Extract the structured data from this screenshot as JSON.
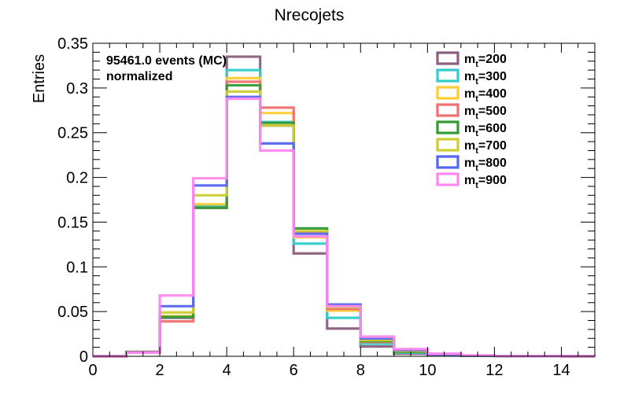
{
  "chart_data": {
    "type": "histogram",
    "title": "Nrecojets",
    "xlabel": "",
    "ylabel": "Entries",
    "xlim": [
      0,
      15
    ],
    "ylim": [
      0,
      0.35
    ],
    "x_ticks": [
      "0",
      "2",
      "4",
      "6",
      "8",
      "10",
      "12",
      "14"
    ],
    "x_tick_values": [
      0,
      2,
      4,
      6,
      8,
      10,
      12,
      14
    ],
    "y_ticks": [
      "0",
      "0.05",
      "0.1",
      "0.15",
      "0.2",
      "0.25",
      "0.3",
      "0.35"
    ],
    "y_tick_values": [
      0,
      0.05,
      0.1,
      0.15,
      0.2,
      0.25,
      0.3,
      0.35
    ],
    "bin_edges": [
      0,
      1,
      2,
      3,
      4,
      5,
      6,
      7,
      8,
      9,
      10,
      11,
      12,
      13,
      14,
      15
    ],
    "info_line1": "95461.0 events (MC)",
    "info_line2": "normalized",
    "legend_position": "top-right",
    "grid": false,
    "series": [
      {
        "name_base": "m",
        "name_sub": "t",
        "name_val": "=200",
        "color": "#8c5f80",
        "values": [
          0.0,
          0.005,
          0.043,
          0.168,
          0.335,
          0.258,
          0.115,
          0.031,
          0.011,
          0.003,
          0.001,
          0.0005,
          0.0002,
          0.0001,
          0.0
        ]
      },
      {
        "name_base": "m",
        "name_sub": "t",
        "name_val": "=300",
        "color": "#33cccc",
        "values": [
          0.0,
          0.004,
          0.044,
          0.168,
          0.32,
          0.262,
          0.126,
          0.043,
          0.014,
          0.004,
          0.0015,
          0.0005,
          0.0002,
          0.0001,
          0.0
        ]
      },
      {
        "name_base": "m",
        "name_sub": "t",
        "name_val": "=400",
        "color": "#ffcc33",
        "values": [
          0.0,
          0.004,
          0.045,
          0.17,
          0.311,
          0.272,
          0.133,
          0.051,
          0.016,
          0.005,
          0.002,
          0.0006,
          0.0002,
          0.0001,
          0.0
        ]
      },
      {
        "name_base": "m",
        "name_sub": "t",
        "name_val": "=500",
        "color": "#f07070",
        "values": [
          0.0,
          0.004,
          0.039,
          0.166,
          0.307,
          0.278,
          0.139,
          0.053,
          0.016,
          0.005,
          0.002,
          0.0006,
          0.0002,
          0.0001,
          0.0
        ]
      },
      {
        "name_base": "m",
        "name_sub": "t",
        "name_val": "=600",
        "color": "#339933",
        "values": [
          0.0,
          0.004,
          0.044,
          0.166,
          0.303,
          0.261,
          0.143,
          0.056,
          0.017,
          0.005,
          0.002,
          0.0006,
          0.0002,
          0.0001,
          0.0
        ]
      },
      {
        "name_base": "m",
        "name_sub": "t",
        "name_val": "=700",
        "color": "#cccc33",
        "values": [
          0.0,
          0.004,
          0.049,
          0.18,
          0.296,
          0.258,
          0.14,
          0.055,
          0.018,
          0.006,
          0.002,
          0.0007,
          0.0002,
          0.0001,
          0.0
        ]
      },
      {
        "name_base": "m",
        "name_sub": "t",
        "name_val": "=800",
        "color": "#5566ee",
        "values": [
          0.0,
          0.004,
          0.056,
          0.191,
          0.29,
          0.238,
          0.137,
          0.058,
          0.02,
          0.007,
          0.002,
          0.0008,
          0.0003,
          0.0001,
          0.0
        ]
      },
      {
        "name_base": "m",
        "name_sub": "t",
        "name_val": "=900",
        "color": "#ff88ee",
        "values": [
          0.0,
          0.004,
          0.068,
          0.199,
          0.288,
          0.23,
          0.134,
          0.056,
          0.022,
          0.008,
          0.003,
          0.001,
          0.0004,
          0.0002,
          0.0001
        ]
      }
    ]
  }
}
